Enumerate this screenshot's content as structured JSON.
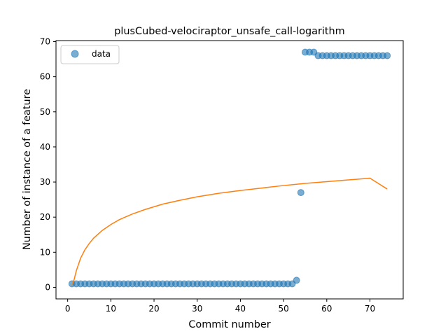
{
  "chart_data": {
    "type": "scatter",
    "title": "plusCubed-velociraptor_unsafe_call-logarithm",
    "xlabel": "Commit number",
    "ylabel": "Number of instance of a feature",
    "xlim": [
      -2.7,
      77.7
    ],
    "ylim": [
      -3.3,
      70.3
    ],
    "xticks": [
      0,
      10,
      20,
      30,
      40,
      50,
      60,
      70
    ],
    "yticks": [
      0,
      10,
      20,
      30,
      40,
      50,
      60,
      70
    ],
    "legend": {
      "placement": "upper-left",
      "entries": [
        "data"
      ]
    },
    "colors": {
      "data": "#1f77b4",
      "fit": "#ff7f0e"
    },
    "series": [
      {
        "name": "data",
        "kind": "points",
        "x": [
          1,
          2,
          3,
          4,
          5,
          6,
          7,
          8,
          9,
          10,
          11,
          12,
          13,
          14,
          15,
          16,
          17,
          18,
          19,
          20,
          21,
          22,
          23,
          24,
          25,
          26,
          27,
          28,
          29,
          30,
          31,
          32,
          33,
          34,
          35,
          36,
          37,
          38,
          39,
          40,
          41,
          42,
          43,
          44,
          45,
          46,
          47,
          48,
          49,
          50,
          51,
          52,
          53,
          54,
          55,
          56,
          57,
          58,
          59,
          60,
          61,
          62,
          63,
          64,
          65,
          66,
          67,
          68,
          69,
          70,
          71,
          72,
          73,
          74
        ],
        "y": [
          1,
          1,
          1,
          1,
          1,
          1,
          1,
          1,
          1,
          1,
          1,
          1,
          1,
          1,
          1,
          1,
          1,
          1,
          1,
          1,
          1,
          1,
          1,
          1,
          1,
          1,
          1,
          1,
          1,
          1,
          1,
          1,
          1,
          1,
          1,
          1,
          1,
          1,
          1,
          1,
          1,
          1,
          1,
          1,
          1,
          1,
          1,
          1,
          1,
          1,
          1,
          1,
          2,
          27,
          67,
          67,
          67,
          66,
          66,
          66,
          66,
          66,
          66,
          66,
          66,
          66,
          66,
          66,
          66,
          66,
          66,
          66,
          66,
          66
        ]
      },
      {
        "kind": "fit-line",
        "x": [
          1,
          1.5,
          2,
          3,
          4,
          5,
          6,
          8,
          10,
          12,
          15,
          18,
          22,
          26,
          30,
          35,
          40,
          45,
          50,
          55,
          60,
          65,
          70,
          74
        ],
        "y": [
          0.5,
          2.2,
          4.7,
          8.3,
          10.7,
          12.5,
          14.0,
          16.2,
          17.9,
          19.3,
          20.9,
          22.2,
          23.7,
          24.8,
          25.8,
          26.8,
          27.6,
          28.3,
          29.0,
          29.6,
          30.1,
          30.6,
          31.1,
          28.0
        ]
      }
    ]
  }
}
